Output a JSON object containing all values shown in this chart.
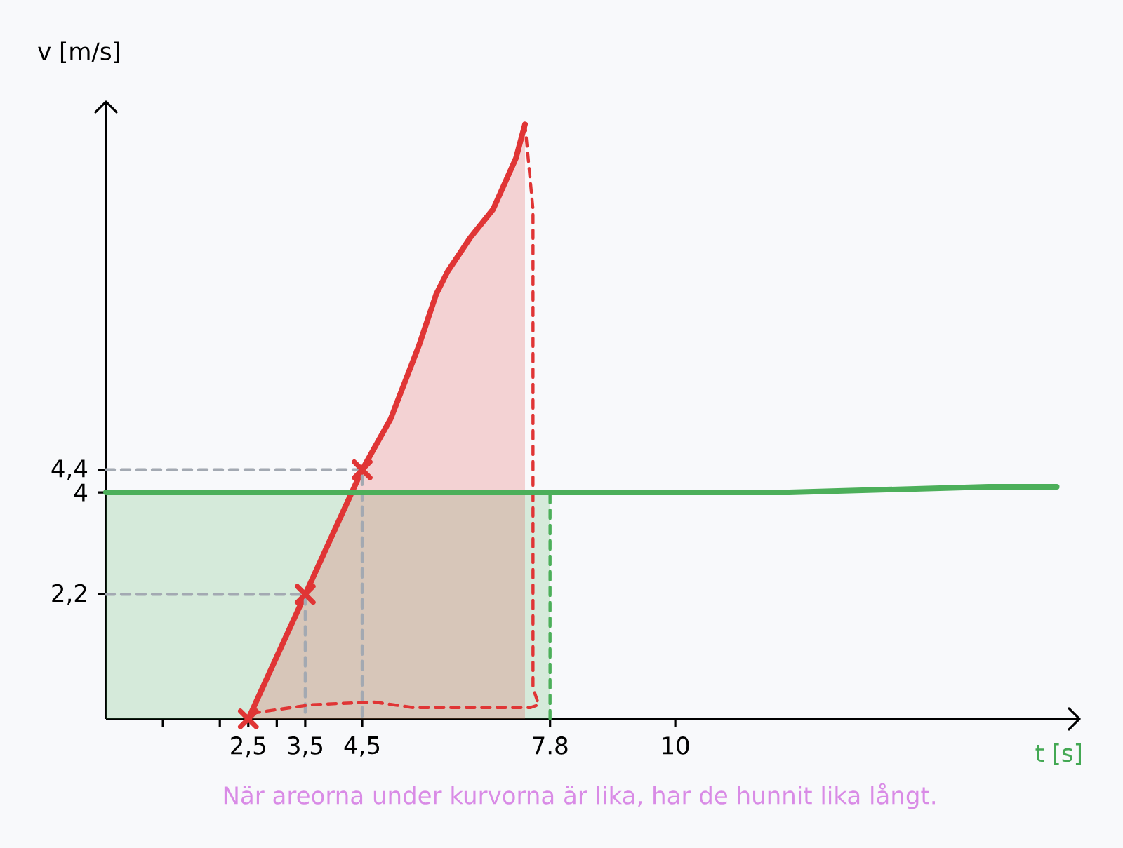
{
  "chart_data": {
    "type": "line",
    "xlabel": "t [s]",
    "ylabel": "v [m/s]",
    "xlim": [
      0,
      17.1
    ],
    "ylim": [
      0,
      10.9
    ],
    "xticks": [
      {
        "value": 1,
        "label": null
      },
      {
        "value": 2,
        "label": null
      },
      {
        "value": 2.5,
        "label": "2,5"
      },
      {
        "value": 3,
        "label": null
      },
      {
        "value": 3.5,
        "label": "3,5"
      },
      {
        "value": 4.5,
        "label": "4,5"
      },
      {
        "value": 7.8,
        "label": "7.8"
      },
      {
        "value": 10,
        "label": "10"
      }
    ],
    "yticks": [
      {
        "value": 2.2,
        "label": "2,2"
      },
      4,
      {
        "value": 4.4,
        "label": "4,4"
      }
    ],
    "series": [
      {
        "type": "area",
        "color": "#4caf5a",
        "x": [
          0,
          7.8
        ],
        "values": [
          4,
          4
        ]
      },
      {
        "type": "area",
        "color": "#e03535",
        "line_style": "solid",
        "x": [
          2.5,
          3.0,
          3.5,
          4.0,
          4.5,
          5.0,
          5.5,
          5.8,
          6.0,
          6.4,
          6.8,
          7.2,
          7.36
        ],
        "values": [
          0,
          1.1,
          2.2,
          3.3,
          4.4,
          5.3,
          6.6,
          7.5,
          7.9,
          8.5,
          9.0,
          9.9,
          10.5
        ]
      },
      {
        "color": "#a3a9b2",
        "line_style": "dashed",
        "x": [
          0,
          4.5,
          4.5
        ],
        "values": [
          4.4,
          4.4,
          0
        ]
      },
      {
        "color": "#a3a9b2",
        "line_style": "dashed",
        "x": [
          0,
          3.5,
          3.5
        ],
        "values": [
          2.2,
          2.2,
          0
        ]
      },
      {
        "color": "#e03535",
        "line_style": "dashed",
        "x": [
          2.55,
          3.6,
          4.7,
          5.4,
          7.45,
          7.6,
          7.5,
          7.5,
          7.36
        ],
        "values": [
          0.1,
          0.25,
          0.3,
          0.2,
          0.2,
          0.25,
          0.55,
          9.0,
          10.5
        ]
      },
      {
        "color": "#4caf5a",
        "line_style": "dashed",
        "x": [
          7.8,
          7.8
        ],
        "values": [
          0,
          4
        ]
      },
      {
        "color": "#4caf5a",
        "line_style": "solid",
        "x": [
          0,
          3.5,
          7.8,
          12,
          15.5,
          16.7
        ],
        "values": [
          4,
          4,
          4,
          4,
          4.1,
          4.1
        ]
      },
      {
        "type": "scatter",
        "color": "#e03535",
        "marker": "cross",
        "x": [
          2.5,
          3.5,
          4.5
        ],
        "values": [
          0,
          2.2,
          4.4
        ]
      }
    ],
    "annotations": [
      "När areorna under kurvorna är lika, har de hunnit lika långt."
    ]
  }
}
